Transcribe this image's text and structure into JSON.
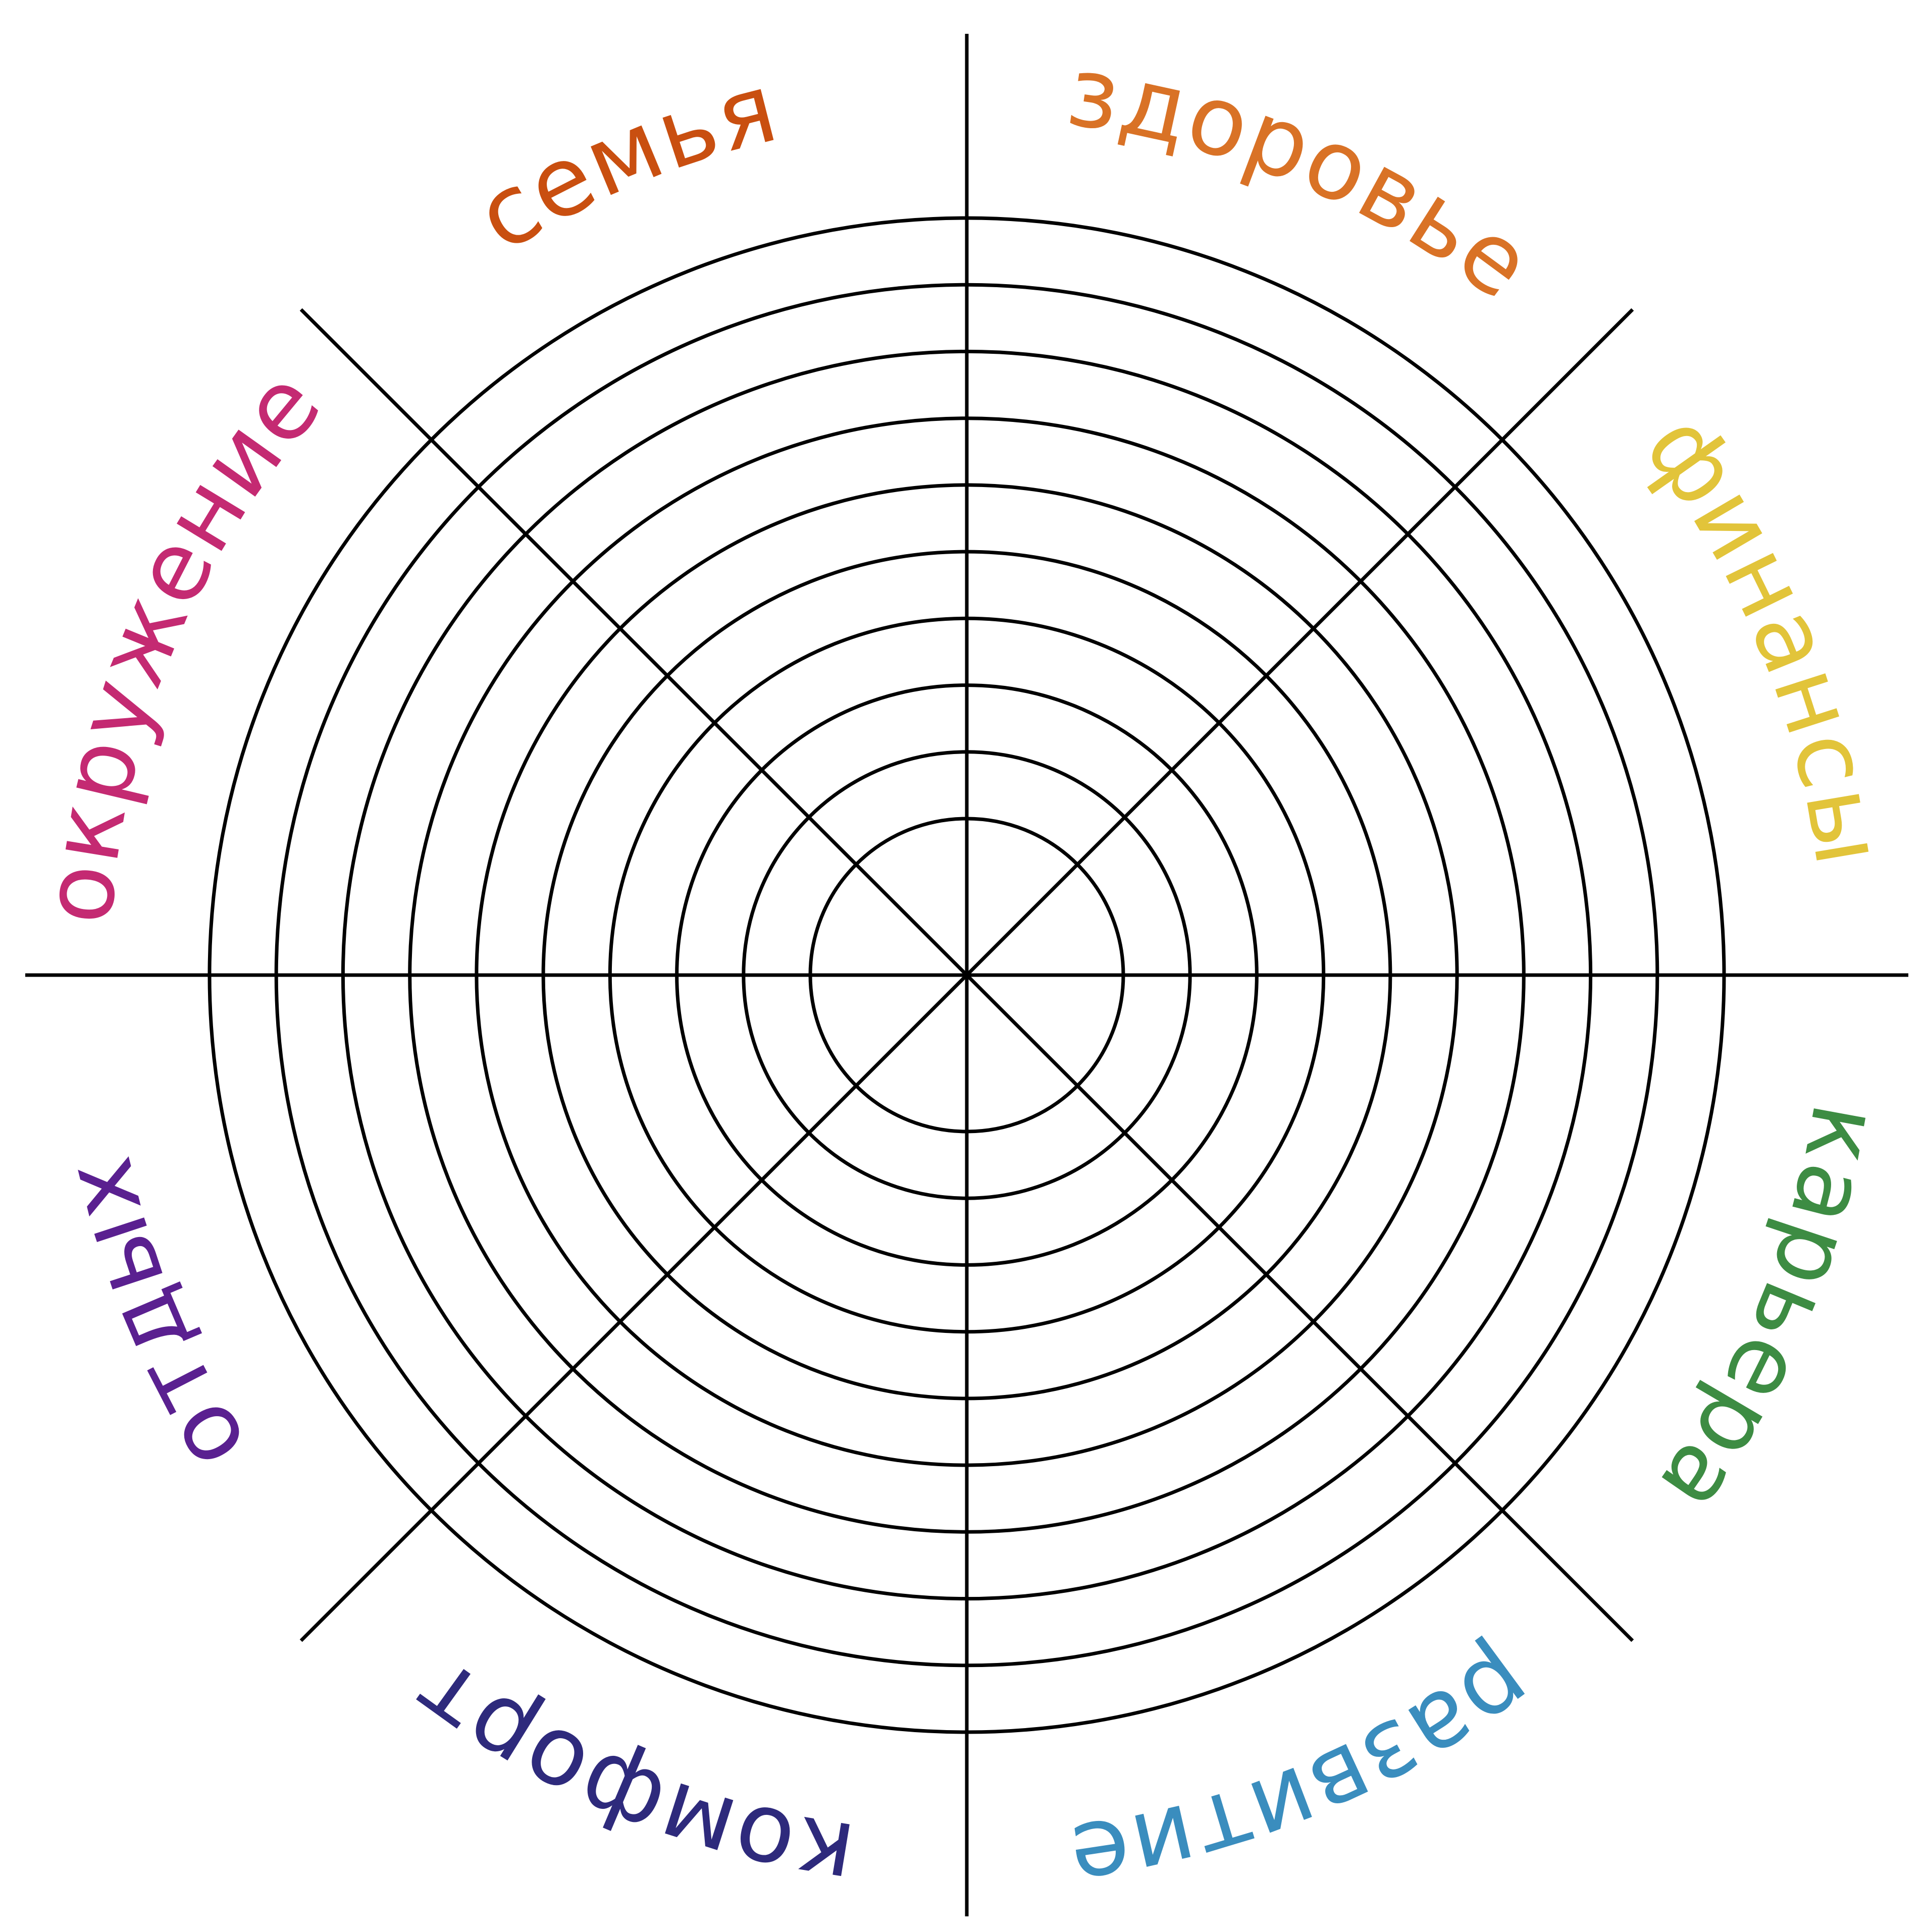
{
  "wheel": {
    "ring_count": 10,
    "spoke_count": 8,
    "line_color": "#000000",
    "background_color": "#ffffff",
    "sectors": [
      {
        "label": "здоровье",
        "color": "#D97226"
      },
      {
        "label": "финансы",
        "color": "#E2C43A"
      },
      {
        "label": "карьера",
        "color": "#3D8C43"
      },
      {
        "label": "развитие",
        "color": "#3A8DBE"
      },
      {
        "label": "комфорт",
        "color": "#2E2A7C"
      },
      {
        "label": "отдых",
        "color": "#5A2090"
      },
      {
        "label": "окружение",
        "color": "#C42A72"
      },
      {
        "label": "семья",
        "color": "#C94F10"
      }
    ]
  }
}
